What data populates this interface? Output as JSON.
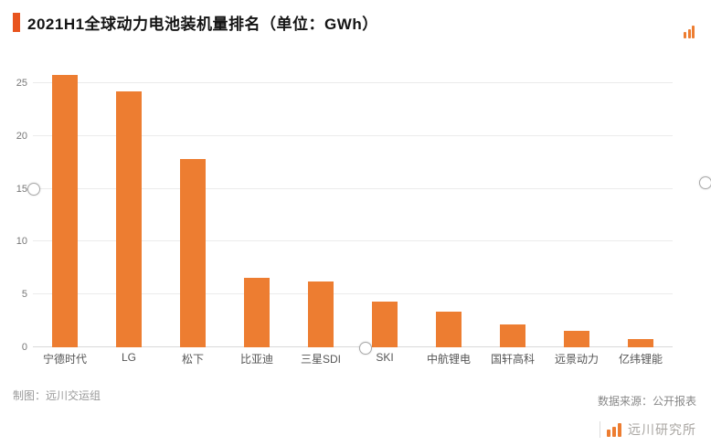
{
  "title": "2021H1全球动力电池装机量排名（单位：GWh）",
  "colors": {
    "bar": "#ed7d31",
    "title_accent": "#e8541e",
    "grid": "#ebebeb",
    "axis_text": "#777777"
  },
  "chart_data": {
    "type": "bar",
    "categories": [
      "宁德时代",
      "LG",
      "松下",
      "比亚迪",
      "三星SDI",
      "SKI",
      "中航锂电",
      "国轩高科",
      "远景动力",
      "亿纬锂能"
    ],
    "values": [
      25.8,
      24.2,
      17.8,
      6.6,
      6.2,
      4.3,
      3.4,
      2.2,
      1.6,
      0.8
    ],
    "title": "2021H1全球动力电池装机量排名（单位：GWh）",
    "xlabel": "",
    "ylabel": "",
    "ylim": [
      0,
      27.5
    ],
    "yticks": [
      0,
      5,
      10,
      15,
      20,
      25
    ],
    "grid": true,
    "legend": "none"
  },
  "footer": {
    "credit": "制图：远川交运组",
    "source": "数据来源：公开报表",
    "brand": "远川研究所"
  }
}
